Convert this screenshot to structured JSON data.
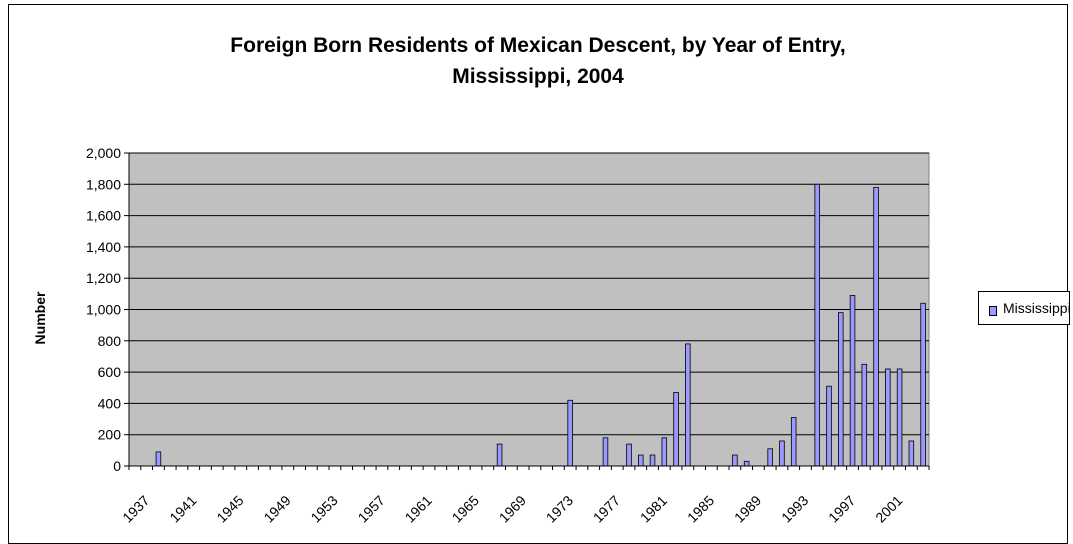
{
  "chart_data": {
    "type": "bar",
    "title": "Foreign Born Residents of Mexican Descent, by Year of Entry, Mississippi, 2004",
    "title_lines": [
      "Foreign Born Residents of Mexican Descent, by Year of Entry,",
      "Mississippi, 2004"
    ],
    "xlabel": "",
    "ylabel": "Number",
    "ylim": [
      0,
      2000
    ],
    "yticks": [
      0,
      200,
      400,
      600,
      800,
      1000,
      1200,
      1400,
      1600,
      1800,
      2000
    ],
    "ytick_labels": [
      "0",
      "200",
      "400",
      "600",
      "800",
      "1,000",
      "1,200",
      "1,400",
      "1,600",
      "1,800",
      "2,000"
    ],
    "categories": [
      "1937",
      "1938",
      "1939",
      "1940",
      "1941",
      "1942",
      "1943",
      "1944",
      "1945",
      "1946",
      "1947",
      "1948",
      "1949",
      "1950",
      "1951",
      "1952",
      "1953",
      "1954",
      "1955",
      "1956",
      "1957",
      "1958",
      "1959",
      "1960",
      "1961",
      "1962",
      "1963",
      "1964",
      "1965",
      "1966",
      "1967",
      "1968",
      "1969",
      "1970",
      "1971",
      "1972",
      "1973",
      "1974",
      "1975",
      "1976",
      "1977",
      "1978",
      "1979",
      "1980",
      "1981",
      "1982",
      "1983",
      "1984",
      "1985",
      "1986",
      "1987",
      "1988",
      "1989",
      "1990",
      "1991",
      "1992",
      "1993",
      "1994",
      "1995",
      "1996",
      "1997",
      "1998",
      "1999",
      "2000",
      "2001",
      "2002",
      "2003",
      "2004"
    ],
    "xtick_labels": [
      "1937",
      "1941",
      "1945",
      "1949",
      "1953",
      "1957",
      "1961",
      "1965",
      "1969",
      "1973",
      "1977",
      "1981",
      "1985",
      "1989",
      "1993",
      "1997",
      "2001"
    ],
    "series": [
      {
        "name": "Mississippi",
        "color": "#9999ff",
        "values": [
          0,
          0,
          90,
          0,
          0,
          0,
          0,
          0,
          0,
          0,
          0,
          0,
          0,
          0,
          0,
          0,
          0,
          0,
          0,
          0,
          0,
          0,
          0,
          0,
          0,
          0,
          0,
          0,
          0,
          0,
          0,
          140,
          0,
          0,
          0,
          0,
          0,
          420,
          0,
          0,
          180,
          0,
          140,
          70,
          70,
          180,
          470,
          780,
          0,
          0,
          0,
          70,
          30,
          0,
          110,
          160,
          310,
          0,
          1800,
          510,
          980,
          1090,
          650,
          1780,
          620,
          620,
          160,
          1040
        ]
      }
    ],
    "legend": "right",
    "grid": true,
    "plot_background": "#c0c0c0"
  }
}
